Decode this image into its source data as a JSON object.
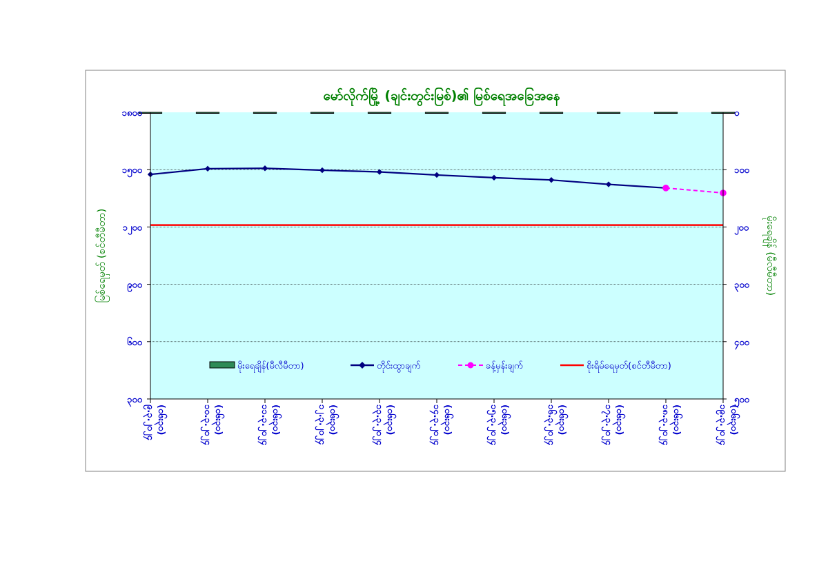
{
  "chart_data": {
    "type": "line",
    "title": "မော်လိုက်မြို့ (ချင်းတွင်းမြစ်)၏ မြစ်ရေအခြေအနေ",
    "ylabel_left": "မြစ်ရေမှတ် (စင်တီမီတာ)",
    "ylabel_right": "မိုးရေချိန် (မီလီမီတာ)",
    "ylim_left": [
      300,
      1800
    ],
    "ylim_right": [
      0,
      500
    ],
    "left_ticks": [
      "၁၈၀၀",
      "၁၅၀၀",
      "၁၂၀၀",
      "၉၀၀",
      "၆၀၀",
      "၃၀၀"
    ],
    "right_ticks": [
      "၀",
      "၁၀၀",
      "၂၀၀",
      "၃၀၀",
      "၄၀၀",
      "၅၀၀"
    ],
    "categories": [
      [
        "၉.၃.၂၀၂၄",
        "(၀၆း၃၀)"
      ],
      [
        "၁၀.၃.၂၀၂၄",
        "(၀၆း၃၀)"
      ],
      [
        "၁၁.၃.၂၀၂၄",
        "(၀၆း၃၀)"
      ],
      [
        "၁၂.၃.၂၀၂၄",
        "(၀၆း၃၀)"
      ],
      [
        "၁၃.၃.၂၀၂၄",
        "(၀၆း၃၀)"
      ],
      [
        "၁၄.၃.၂၀၂၄",
        "(၀၆း၃၀)"
      ],
      [
        "၁၅.၃.၂၀၂၄",
        "(၀၆း၃၀)"
      ],
      [
        "၁၆.၃.၂၀၂၄",
        "(၀၆း၃၀)"
      ],
      [
        "၁၇.၃.၂၀၂၄",
        "(၀၆း၃၀)"
      ],
      [
        "၁၈.၃.၂၀၂၄",
        "(၀၆း၃၀)"
      ],
      [
        "၁၉.၃.၂၀၂၄",
        "(၀၆း၃၀)"
      ]
    ],
    "series": [
      {
        "name": "မိုးရေချိန်(မီလီမီတာ)",
        "kind": "bar",
        "axis": "right",
        "color": "#2e8b57",
        "values": [
          0,
          0,
          0,
          0,
          0,
          0,
          0,
          0,
          0,
          0,
          0
        ]
      },
      {
        "name": "တိုင်းထွာချက်",
        "kind": "line",
        "axis": "left",
        "color": "#000080",
        "values": [
          1475,
          1505,
          1507,
          1497,
          1488,
          1472,
          1458,
          1446,
          1423,
          1404,
          null
        ]
      },
      {
        "name": "ခန့်မှန်းချက်",
        "kind": "dashed",
        "axis": "left",
        "color": "#ff00ff",
        "values": [
          null,
          null,
          null,
          null,
          null,
          null,
          null,
          null,
          null,
          1404,
          1378
        ]
      },
      {
        "name": "စိုးရိမ်ရေမှတ်(စင်တီမီတာ)",
        "kind": "hline",
        "axis": "left",
        "color": "#ff0000",
        "value": 1210
      }
    ],
    "grid": true,
    "legend_position": "bottom-inside",
    "colors": {
      "plot_bg": "#ccffff",
      "title": "#008000",
      "axis_label": "#008000",
      "tick": "#0000cd"
    }
  }
}
